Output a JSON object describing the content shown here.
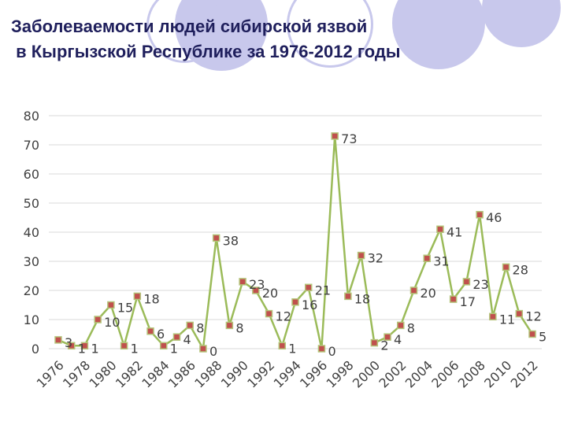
{
  "slide": {
    "title_line1": "Заболеваемости людей сибирской язвой",
    "title_line2": " в Кыргызской Республике за 1976-2012 годы"
  },
  "colors": {
    "line": "#9bbb59",
    "marker_fill": "#c0504d",
    "marker_edge": "#b4c47a",
    "grid": "#d9d9d9",
    "text": "#404040",
    "title": "#1f1f5c",
    "decor": "#c8c8ec"
  },
  "chart_data": {
    "type": "line",
    "title": "",
    "xlabel": "",
    "ylabel": "",
    "ylim": [
      0,
      80
    ],
    "yticks": [
      0,
      10,
      20,
      30,
      40,
      50,
      60,
      70,
      80
    ],
    "x_tick_labels": [
      "1976",
      "1978",
      "1980",
      "1982",
      "1984",
      "1986",
      "1988",
      "1990",
      "1992",
      "1994",
      "1996",
      "1998",
      "2000",
      "2002",
      "2004",
      "2006",
      "2008",
      "2010",
      "2012"
    ],
    "grid": true,
    "legend": "none",
    "data_labels": true,
    "x": [
      1976,
      1977,
      1978,
      1979,
      1980,
      1981,
      1982,
      1983,
      1984,
      1985,
      1986,
      1987,
      1988,
      1989,
      1990,
      1991,
      1992,
      1993,
      1994,
      1995,
      1996,
      1997,
      1998,
      1999,
      2000,
      2001,
      2002,
      2003,
      2004,
      2005,
      2006,
      2007,
      2008,
      2009,
      2010,
      2011,
      2012
    ],
    "series": [
      {
        "values": [
          3,
          1,
          1,
          10,
          15,
          1,
          18,
          6,
          1,
          4,
          8,
          0,
          38,
          8,
          23,
          20,
          12,
          1,
          16,
          21,
          0,
          73,
          18,
          32,
          2,
          4,
          8,
          20,
          31,
          41,
          17,
          23,
          46,
          11,
          28,
          12,
          5
        ]
      }
    ]
  }
}
